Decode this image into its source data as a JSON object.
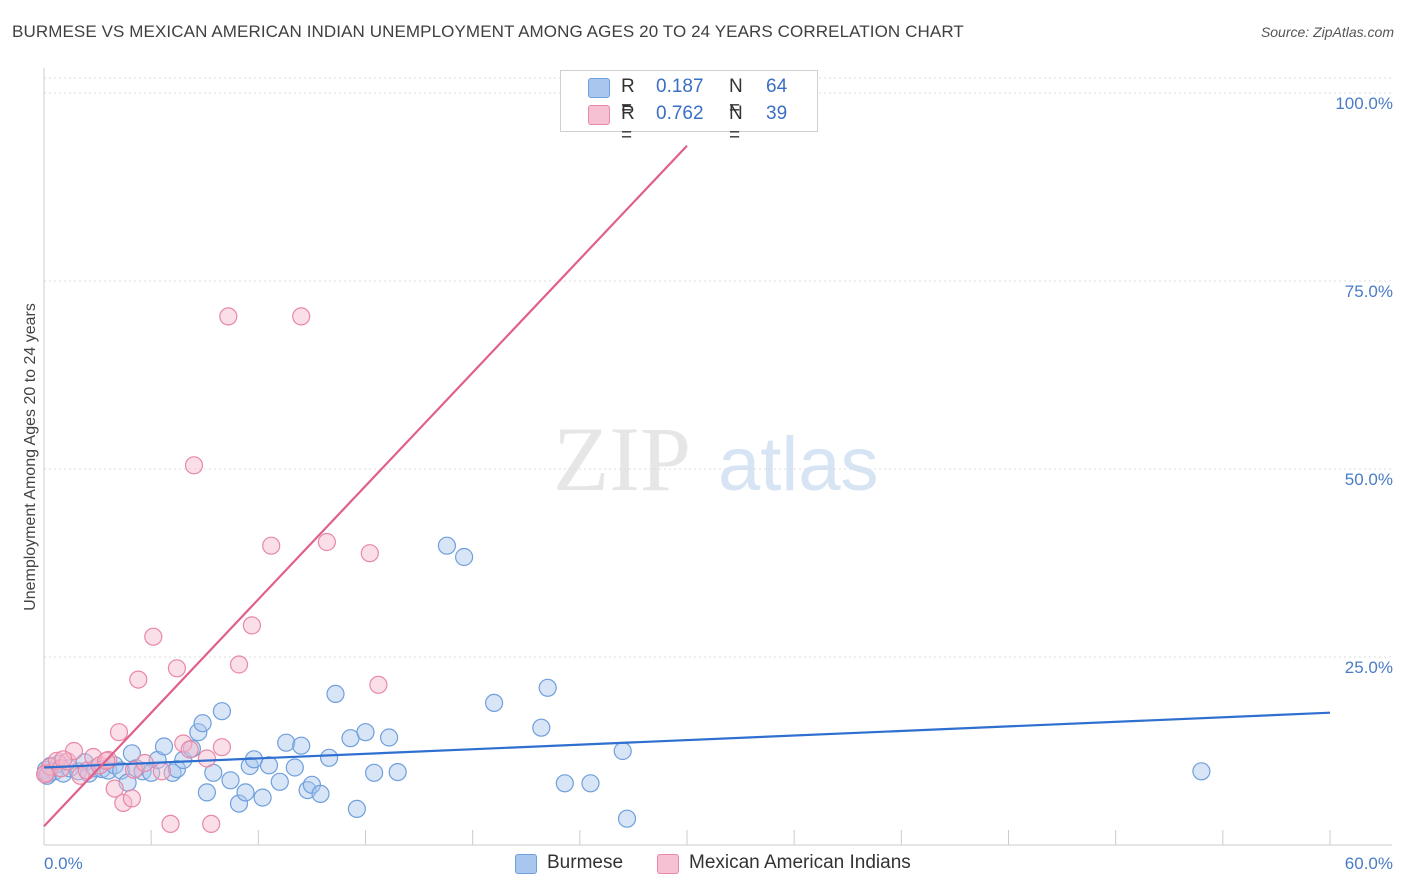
{
  "title": "BURMESE VS MEXICAN AMERICAN INDIAN UNEMPLOYMENT AMONG AGES 20 TO 24 YEARS CORRELATION CHART",
  "source": "Source: ZipAtlas.com",
  "watermark": {
    "part1": "ZIP",
    "part2": "atlas"
  },
  "legend": {
    "r_label": "R =",
    "n_label": "N =",
    "rows": [
      {
        "r": "0.187",
        "n": "64"
      },
      {
        "r": "0.762",
        "n": "39"
      }
    ]
  },
  "chart_data": {
    "type": "scatter",
    "title": "BURMESE VS MEXICAN AMERICAN INDIAN UNEMPLOYMENT AMONG AGES 20 TO 24 YEARS CORRELATION CHART",
    "xlabel": "",
    "ylabel": "Unemployment Among Ages 20 to 24 years",
    "xlim": [
      0,
      60
    ],
    "ylim": [
      0,
      102
    ],
    "x_tick_labels": [
      "0.0%",
      "60.0%"
    ],
    "y_ticks": [
      25,
      50,
      75,
      100
    ],
    "y_tick_labels": [
      "25.0%",
      "50.0%",
      "75.0%",
      "100.0%"
    ],
    "grid": true,
    "legend_position": "bottom-center",
    "series": [
      {
        "name": "Burmese",
        "color": "#a8c6ee",
        "edge": "#6f9fdc",
        "line_color": "#2e6fd0",
        "trend": {
          "x": [
            0,
            60
          ],
          "y": [
            10.3,
            17.6
          ]
        },
        "points": [
          [
            0.1,
            10.0
          ],
          [
            0.2,
            9.5
          ],
          [
            0.3,
            10.5
          ],
          [
            0.5,
            9.8
          ],
          [
            0.7,
            10.8
          ],
          [
            0.9,
            9.5
          ],
          [
            1.2,
            10.2
          ],
          [
            1.6,
            9.8
          ],
          [
            1.9,
            11.0
          ],
          [
            2.1,
            9.5
          ],
          [
            2.4,
            10.2
          ],
          [
            2.7,
            10.1
          ],
          [
            3.0,
            9.9
          ],
          [
            3.3,
            10.6
          ],
          [
            3.6,
            9.9
          ],
          [
            3.9,
            8.3
          ],
          [
            4.1,
            12.2
          ],
          [
            4.3,
            10.2
          ],
          [
            4.6,
            9.8
          ],
          [
            5.0,
            9.6
          ],
          [
            5.3,
            11.3
          ],
          [
            5.6,
            13.1
          ],
          [
            6.0,
            9.6
          ],
          [
            6.2,
            10.1
          ],
          [
            6.5,
            11.3
          ],
          [
            6.9,
            12.8
          ],
          [
            7.2,
            15.0
          ],
          [
            7.4,
            16.2
          ],
          [
            7.6,
            7.0
          ],
          [
            7.9,
            9.6
          ],
          [
            8.3,
            17.8
          ],
          [
            8.7,
            8.6
          ],
          [
            9.1,
            5.5
          ],
          [
            9.4,
            7.0
          ],
          [
            9.6,
            10.5
          ],
          [
            9.8,
            11.4
          ],
          [
            10.2,
            6.3
          ],
          [
            10.5,
            10.6
          ],
          [
            11.0,
            8.4
          ],
          [
            11.3,
            13.6
          ],
          [
            11.7,
            10.3
          ],
          [
            12.0,
            13.2
          ],
          [
            12.3,
            7.3
          ],
          [
            12.5,
            8.0
          ],
          [
            12.9,
            6.8
          ],
          [
            13.3,
            11.6
          ],
          [
            13.6,
            20.1
          ],
          [
            14.3,
            14.2
          ],
          [
            14.6,
            4.8
          ],
          [
            15.0,
            15.0
          ],
          [
            15.4,
            9.6
          ],
          [
            16.1,
            14.3
          ],
          [
            16.5,
            9.7
          ],
          [
            18.8,
            39.8
          ],
          [
            19.6,
            38.3
          ],
          [
            21.0,
            18.9
          ],
          [
            23.2,
            15.6
          ],
          [
            23.5,
            20.9
          ],
          [
            24.3,
            8.2
          ],
          [
            25.5,
            8.2
          ],
          [
            27.0,
            12.5
          ],
          [
            27.2,
            3.5
          ],
          [
            54.0,
            9.8
          ],
          [
            0.15,
            9.2
          ]
        ]
      },
      {
        "name": "Mexican American Indians",
        "color": "#f6b8cd",
        "edge": "#e888a6",
        "line_color": "#e0608a",
        "trend": {
          "x": [
            0,
            30
          ],
          "y": [
            2.5,
            93.0
          ]
        },
        "points": [
          [
            0.1,
            9.6
          ],
          [
            0.3,
            10.4
          ],
          [
            0.6,
            11.2
          ],
          [
            0.8,
            10.2
          ],
          [
            1.1,
            11.1
          ],
          [
            1.4,
            12.5
          ],
          [
            1.7,
            9.2
          ],
          [
            2.0,
            9.9
          ],
          [
            2.3,
            11.7
          ],
          [
            2.6,
            10.6
          ],
          [
            3.0,
            11.3
          ],
          [
            3.3,
            7.5
          ],
          [
            3.5,
            15.0
          ],
          [
            3.7,
            5.6
          ],
          [
            4.1,
            6.2
          ],
          [
            4.2,
            10.0
          ],
          [
            4.4,
            22.0
          ],
          [
            4.7,
            10.9
          ],
          [
            5.1,
            27.7
          ],
          [
            5.5,
            9.8
          ],
          [
            5.9,
            2.8
          ],
          [
            6.2,
            23.5
          ],
          [
            6.5,
            13.5
          ],
          [
            7.0,
            50.5
          ],
          [
            7.6,
            11.5
          ],
          [
            7.8,
            2.8
          ],
          [
            8.3,
            13.0
          ],
          [
            8.6,
            70.3
          ],
          [
            9.1,
            24.0
          ],
          [
            9.7,
            29.2
          ],
          [
            10.6,
            39.8
          ],
          [
            12.0,
            70.3
          ],
          [
            13.2,
            40.3
          ],
          [
            15.2,
            38.8
          ],
          [
            15.6,
            21.3
          ],
          [
            0.05,
            9.4
          ],
          [
            0.9,
            11.4
          ],
          [
            2.9,
            11.2
          ],
          [
            6.8,
            12.7
          ]
        ]
      }
    ]
  }
}
